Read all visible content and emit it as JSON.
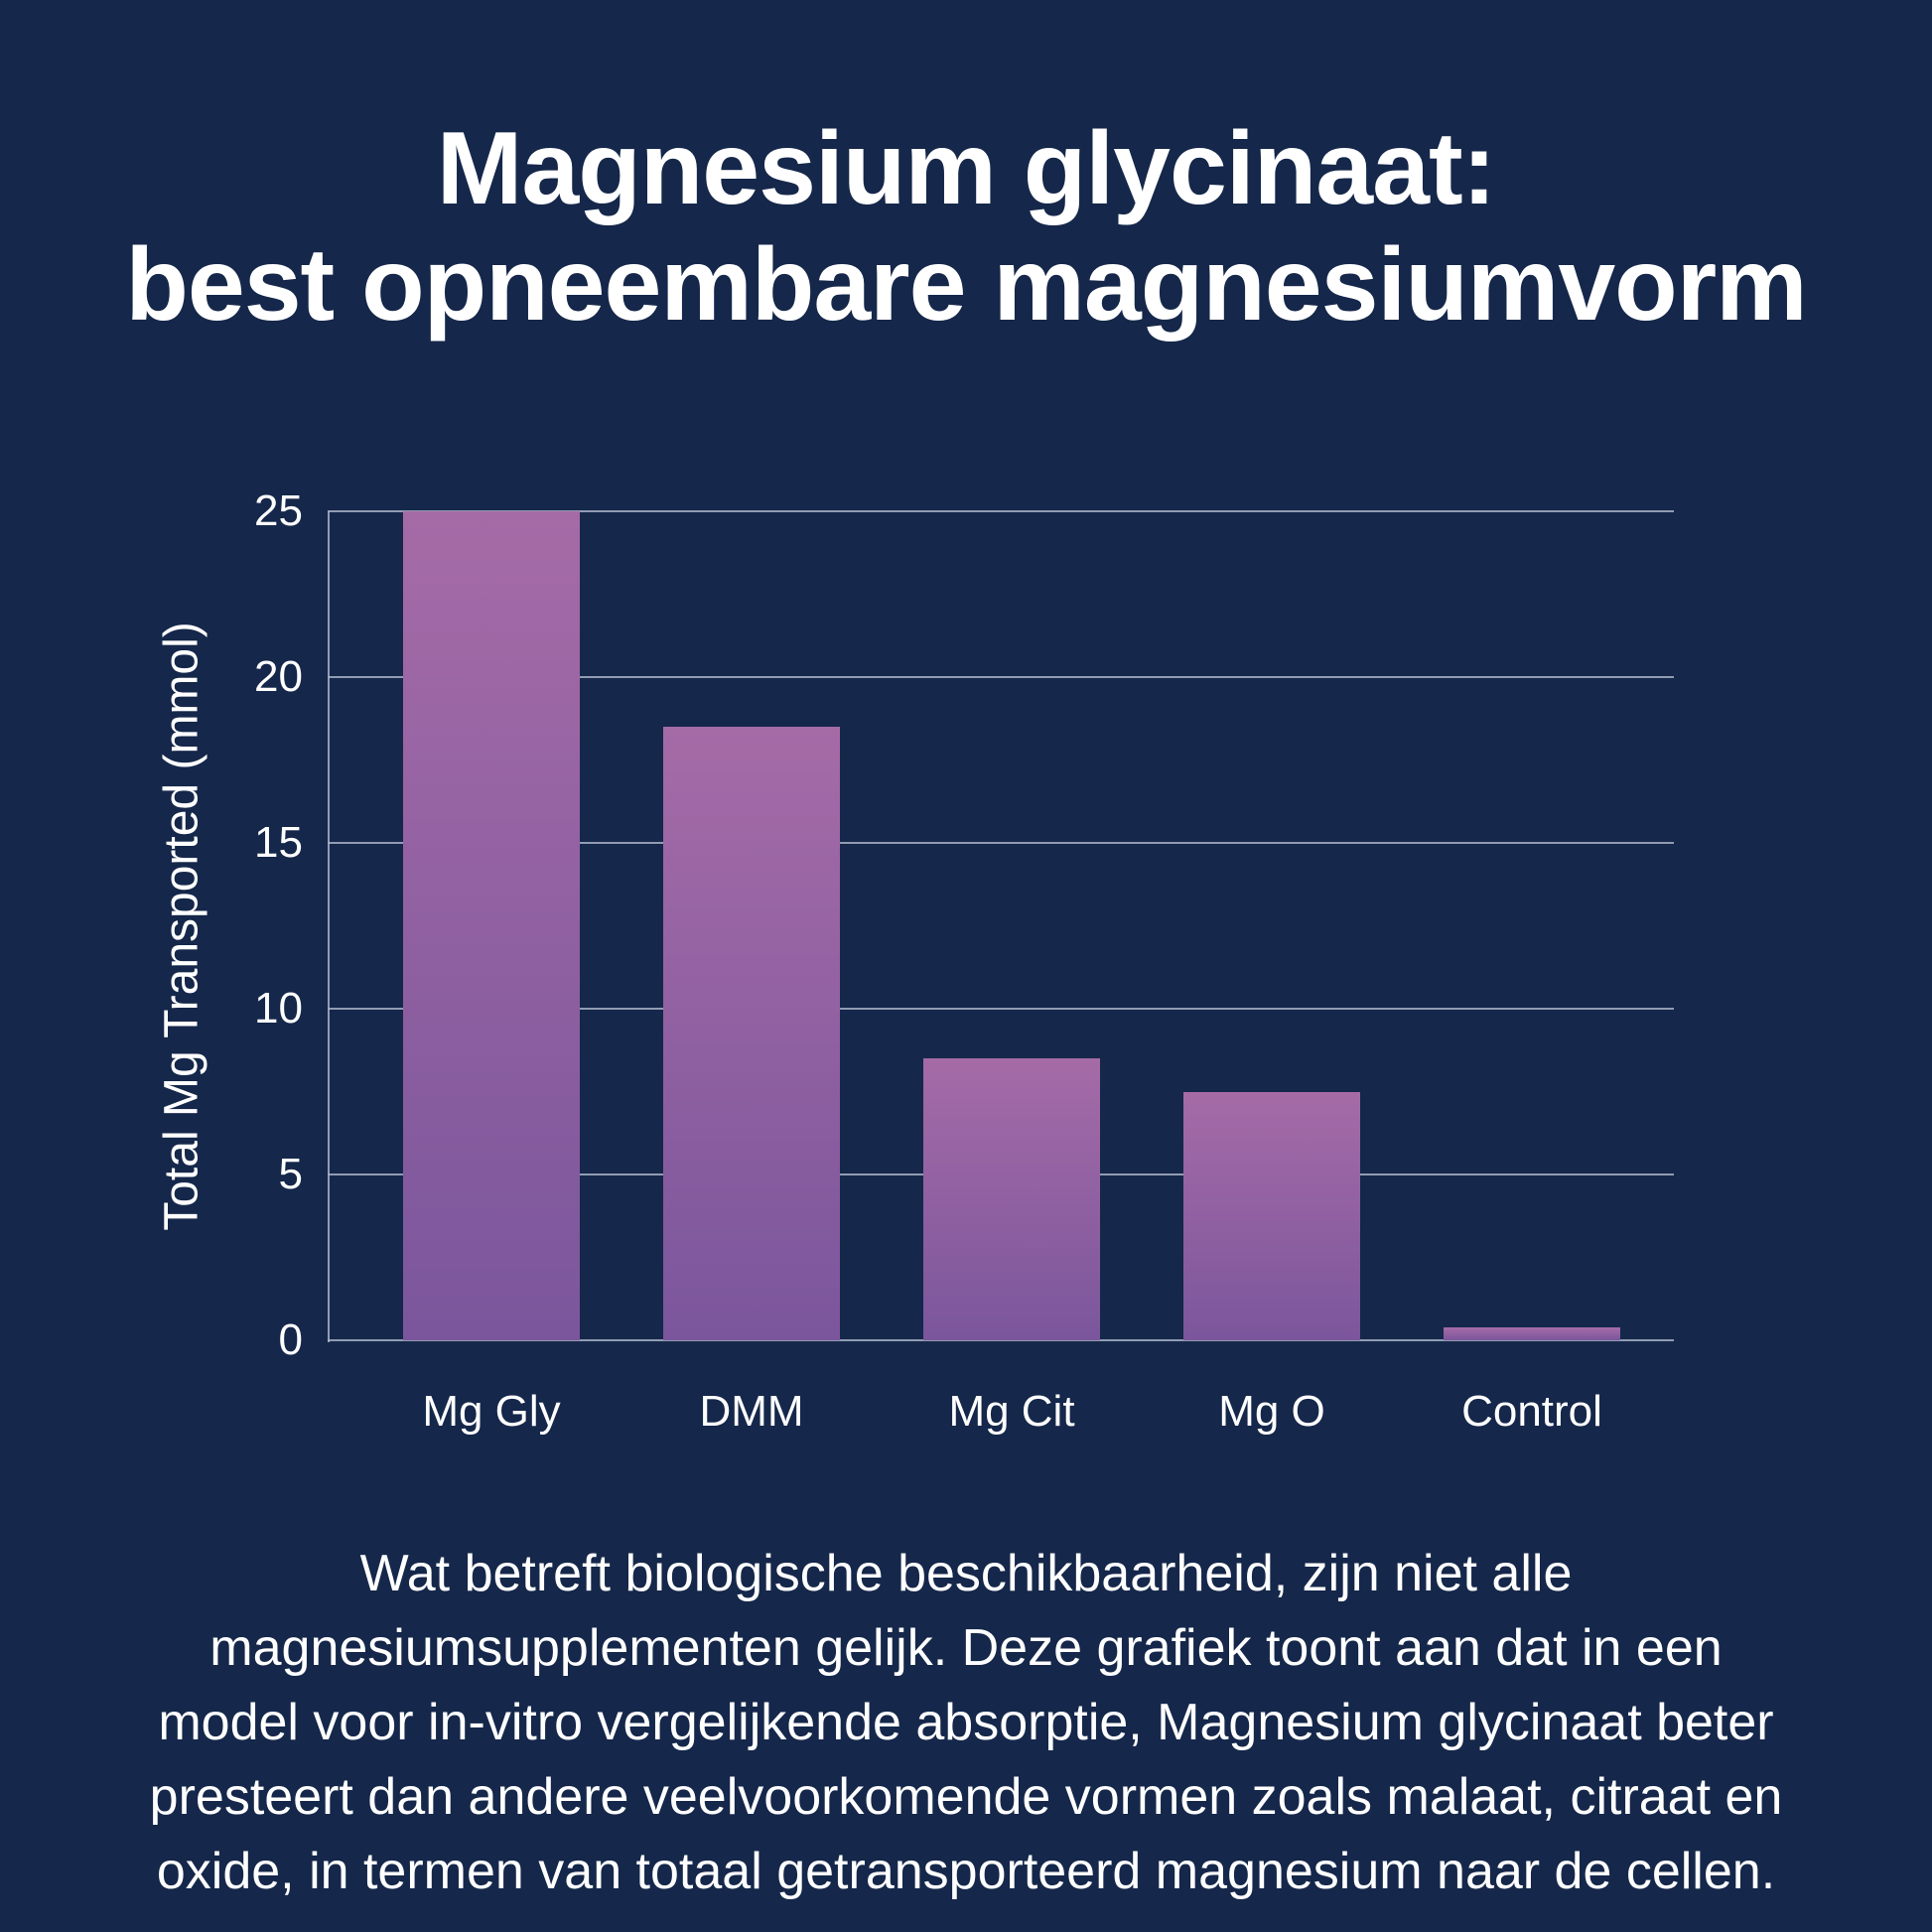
{
  "title": {
    "line1": "Magnesium glycinaat:",
    "line2": "best opneembare magnesiumvorm"
  },
  "chart_data": {
    "type": "bar",
    "categories": [
      "Mg Gly",
      "DMM",
      "Mg Cit",
      "Mg O",
      "Control"
    ],
    "values": [
      25,
      18.5,
      8.5,
      7.5,
      0.4
    ],
    "title": "",
    "xlabel": "",
    "ylabel": "Total Mg Transported (mmol)",
    "yticks": [
      25,
      20,
      15,
      10,
      5,
      0
    ],
    "ylim": [
      0,
      25
    ],
    "grid": true,
    "legend": false,
    "colors": {
      "background": "#15274A",
      "text": "#FFFFFF",
      "gridline": "#A7B2C6",
      "bar_gradient_top": "#A56BA7",
      "bar_gradient_bottom": "#7B569C"
    }
  },
  "caption": {
    "lines": [
      "Wat betreft biologische beschikbaarheid, zijn niet alle",
      "magnesiumsupplementen gelijk. Deze grafiek toont aan dat in een",
      "model voor in-vitro vergelijkende absorptie, Magnesium glycinaat beter",
      "presteert dan andere veelvoorkomende vormen zoals malaat, citraat en",
      "oxide, in termen van totaal getransporteerd magnesium naar de cellen."
    ]
  }
}
